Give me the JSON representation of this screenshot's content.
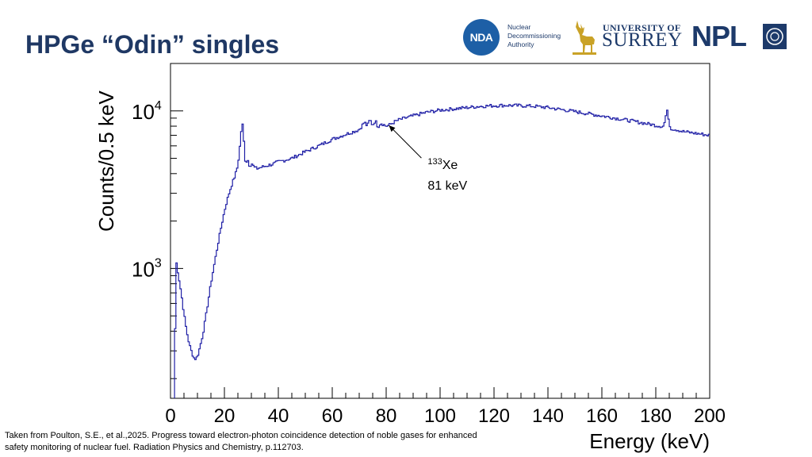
{
  "slide": {
    "title": "HPGe “Odin” singles",
    "citation_line1": "Taken from Poulton, S.E., et al.,2025. Progress toward electron-photon coincidence detection of noble gases for enhanced",
    "citation_line2": "safety monitoring of nuclear fuel. Radiation Physics and Chemistry, p.112703."
  },
  "logos": {
    "nda_mark": "NDA",
    "nda_line1": "Nuclear",
    "nda_line2": "Decommissioning",
    "nda_line3": "Authority",
    "surrey_small": "UNIVERSITY OF",
    "surrey_big": "SURREY",
    "npl": "NPL"
  },
  "colors": {
    "title": "#1f3864",
    "line": "#1f1fa6",
    "logo_blue": "#1d5fa6",
    "logo_navy": "#1d3a6a",
    "stag_gold": "#c9a227"
  },
  "chart_data": {
    "type": "line",
    "xlabel": "Energy (keV)",
    "ylabel": "Counts/0.5 keV",
    "xlim": [
      0,
      200
    ],
    "ylim": [
      150,
      20000
    ],
    "yscale": "log",
    "xticks": [
      0,
      20,
      40,
      60,
      80,
      100,
      120,
      140,
      160,
      180,
      200
    ],
    "yticks": [
      {
        "value": 1000,
        "base": "10",
        "exp": "3"
      },
      {
        "value": 10000,
        "base": "10",
        "exp": "4"
      }
    ],
    "grid": false,
    "annotation": {
      "isotope_mass": "133",
      "isotope_symbol": "Xe",
      "energy_label": "81 keV",
      "arrow_target": [
        81,
        8100
      ],
      "text_at": [
        96,
        4800
      ]
    },
    "series": [
      {
        "x": [
          1.5,
          2,
          3,
          4,
          5,
          6,
          7,
          8,
          9,
          10,
          11,
          12,
          13,
          14,
          15,
          16,
          17,
          18,
          19,
          20,
          21,
          22,
          23,
          24,
          25,
          26,
          26.5,
          27,
          27.5,
          28,
          28.5,
          29,
          29.5,
          30,
          31,
          32,
          33,
          34,
          35,
          36,
          38,
          40,
          45,
          50,
          55,
          60,
          65,
          70,
          72,
          73,
          74,
          75,
          76,
          77,
          78,
          79,
          80,
          81,
          82,
          83,
          85,
          90,
          95,
          100,
          105,
          110,
          115,
          120,
          125,
          130,
          135,
          140,
          145,
          150,
          155,
          160,
          165,
          170,
          175,
          180,
          182,
          183,
          184,
          184.5,
          185,
          185.5,
          186,
          188,
          190,
          195,
          200
        ],
        "y": [
          150,
          1150,
          900,
          700,
          520,
          400,
          330,
          290,
          265,
          275,
          320,
          380,
          480,
          620,
          800,
          1000,
          1250,
          1550,
          1900,
          2300,
          2700,
          3100,
          3500,
          3900,
          4500,
          6500,
          8500,
          7800,
          5200,
          4600,
          5000,
          4700,
          4400,
          4700,
          4400,
          4300,
          4350,
          4400,
          4450,
          4500,
          4600,
          4750,
          5000,
          5500,
          6000,
          6600,
          7100,
          7600,
          8500,
          8000,
          8800,
          8100,
          8700,
          7900,
          8400,
          8200,
          8000,
          8100,
          8300,
          8500,
          8800,
          9300,
          9800,
          10100,
          10300,
          10500,
          10700,
          10800,
          10850,
          10800,
          10700,
          10500,
          10200,
          9900,
          9600,
          9300,
          9000,
          8700,
          8400,
          8100,
          8000,
          8000,
          9800,
          10000,
          8200,
          7800,
          7700,
          7600,
          7400,
          7200,
          7000
        ]
      }
    ]
  }
}
